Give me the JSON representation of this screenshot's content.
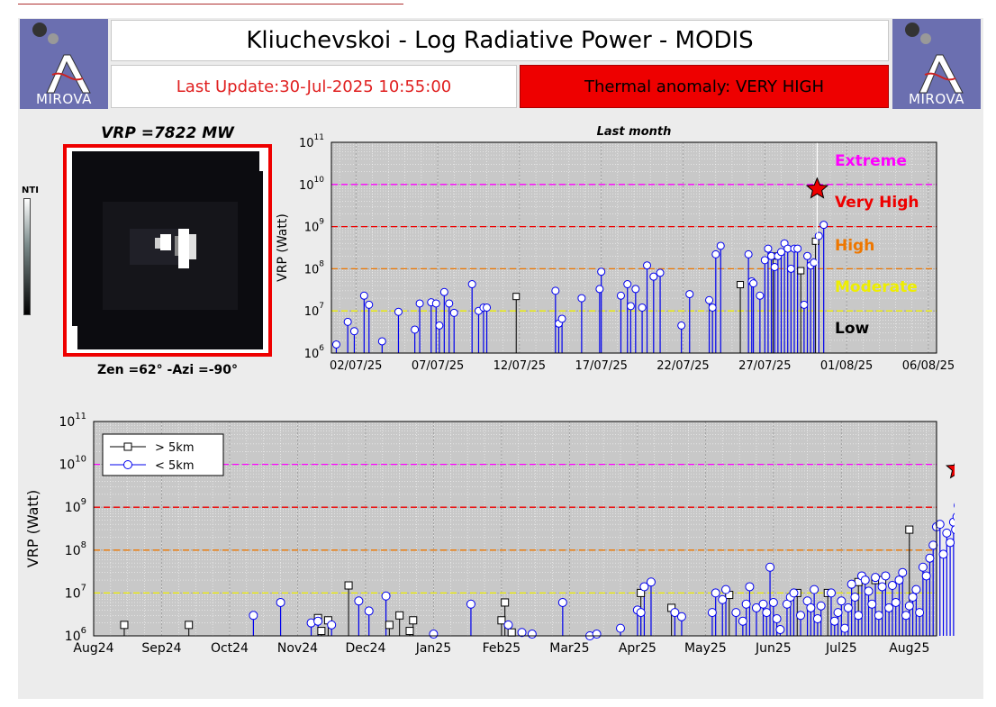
{
  "header": {
    "title": "Kliuchevskoi - Log Radiative Power - MODIS",
    "last_update": "Last Update:30-Jul-2025 10:55:00",
    "alert": "Thermal anomaly:  VERY HIGH",
    "logo_left": "MIROVA",
    "logo_right": "MIROVA"
  },
  "thumbnail": {
    "vrp_label": "VRP =7822 MW",
    "geometry_label": "Zen =62° -Azi =-90°",
    "colorbar_label": "NTI"
  },
  "colors": {
    "alert_bg": "#ee0000",
    "extreme": "#ff00ff",
    "very_high": "#ee0000",
    "high": "#ee7700",
    "moderate": "#eeee00",
    "low": "#000000",
    "series_near": "#0000ee",
    "series_far": "#000000",
    "latest_marker": "#ee0000"
  },
  "chart_data": [
    {
      "type": "scatter",
      "title": "Last month",
      "ylabel": "VRP (Watt)",
      "yscale": "log",
      "ylim": [
        1000000,
        100000000000
      ],
      "y_tick_labels": [
        {
          "base": "10",
          "exp": "6"
        },
        {
          "base": "10",
          "exp": "7"
        },
        {
          "base": "10",
          "exp": "8"
        },
        {
          "base": "10",
          "exp": "9"
        },
        {
          "base": "10",
          "exp": "10"
        },
        {
          "base": "10",
          "exp": "11"
        }
      ],
      "x_tick_labels": [
        "02/07/25",
        "07/07/25",
        "12/07/25",
        "17/07/25",
        "22/07/25",
        "27/07/25",
        "01/08/25",
        "06/08/25"
      ],
      "x_tick_days": [
        2,
        7,
        12,
        17,
        22,
        27,
        32,
        37
      ],
      "xlim": [
        0.5,
        37.5
      ],
      "grid": true,
      "thresholds": [
        {
          "label": "Extreme",
          "y": 10000000000,
          "color": "#ff00ff"
        },
        {
          "label": "Very High",
          "y": 1000000000,
          "color": "#ee0000"
        },
        {
          "label": "High",
          "y": 100000000,
          "color": "#ee7700"
        },
        {
          "label": "Moderate",
          "y": 10000000,
          "color": "#eeee00"
        },
        {
          "label": "Low",
          "y": null,
          "color": "#000000"
        }
      ],
      "series": [
        {
          "name": "< 5km",
          "points": [
            [
              0.8,
              1600000.0
            ],
            [
              1.5,
              5500000.0
            ],
            [
              1.9,
              3300000.0
            ],
            [
              2.5,
              23000000.0
            ],
            [
              2.8,
              14000000.0
            ],
            [
              3.6,
              1900000.0
            ],
            [
              4.6,
              9500000.0
            ],
            [
              5.6,
              3600000.0
            ],
            [
              5.9,
              15000000.0
            ],
            [
              6.6,
              16000000.0
            ],
            [
              6.9,
              15000000.0
            ],
            [
              7.1,
              4500000.0
            ],
            [
              7.4,
              28000000.0
            ],
            [
              7.7,
              15000000.0
            ],
            [
              8.0,
              9000000.0
            ],
            [
              9.1,
              43000000.0
            ],
            [
              9.5,
              10000000.0
            ],
            [
              9.8,
              12000000.0
            ],
            [
              10.0,
              12000000.0
            ],
            [
              14.2,
              30000000.0
            ],
            [
              14.4,
              5000000.0
            ],
            [
              14.6,
              6500000.0
            ],
            [
              15.8,
              20000000.0
            ],
            [
              16.9,
              33000000.0
            ],
            [
              17.0,
              85000000.0
            ],
            [
              18.2,
              23000000.0
            ],
            [
              18.6,
              43000000.0
            ],
            [
              18.8,
              13000000.0
            ],
            [
              19.1,
              33000000.0
            ],
            [
              19.5,
              12000000.0
            ],
            [
              19.8,
              120000000.0
            ],
            [
              20.2,
              65000000.0
            ],
            [
              20.6,
              80000000.0
            ],
            [
              21.9,
              4500000.0
            ],
            [
              22.4,
              25000000.0
            ],
            [
              23.6,
              18000000.0
            ],
            [
              23.8,
              12000000.0
            ],
            [
              24.0,
              220000000.0
            ],
            [
              24.3,
              350000000.0
            ],
            [
              26.0,
              220000000.0
            ],
            [
              26.2,
              50000000.0
            ],
            [
              26.3,
              45000000.0
            ],
            [
              26.7,
              23000000.0
            ],
            [
              27.0,
              160000000.0
            ],
            [
              27.2,
              300000000.0
            ],
            [
              27.4,
              200000000.0
            ],
            [
              27.6,
              110000000.0
            ],
            [
              27.8,
              200000000.0
            ],
            [
              28.0,
              250000000.0
            ],
            [
              28.2,
              400000000.0
            ],
            [
              28.4,
              300000000.0
            ],
            [
              28.6,
              100000000.0
            ],
            [
              28.8,
              300000000.0
            ],
            [
              29.0,
              300000000.0
            ],
            [
              29.4,
              14000000.0
            ],
            [
              29.6,
              200000000.0
            ],
            [
              29.8,
              120000000.0
            ],
            [
              30.0,
              140000000.0
            ],
            [
              30.3,
              600000000.0
            ],
            [
              30.6,
              1100000000.0
            ]
          ]
        },
        {
          "name": "> 5km",
          "points": [
            [
              11.8,
              22000000.0
            ],
            [
              25.5,
              42000000.0
            ],
            [
              27.5,
              200000000.0
            ],
            [
              29.2,
              90000000.0
            ],
            [
              30.1,
              450000000.0
            ]
          ]
        }
      ],
      "latest": [
        30.2,
        7800000000.0
      ]
    },
    {
      "type": "scatter",
      "ylabel": "VRP (Watt)",
      "yscale": "log",
      "ylim": [
        1000000,
        100000000000
      ],
      "y_tick_labels": [
        {
          "base": "10",
          "exp": "6"
        },
        {
          "base": "10",
          "exp": "7"
        },
        {
          "base": "10",
          "exp": "8"
        },
        {
          "base": "10",
          "exp": "9"
        },
        {
          "base": "10",
          "exp": "10"
        },
        {
          "base": "10",
          "exp": "11"
        }
      ],
      "x_tick_labels": [
        "Aug24",
        "Sep24",
        "Oct24",
        "Nov24",
        "Dec24",
        "Jan25",
        "Feb25",
        "Mar25",
        "Apr25",
        "May25",
        "Jun25",
        "Jul25",
        "Aug25"
      ],
      "x_tick_months": [
        0,
        1,
        2,
        3,
        4,
        5,
        6,
        7,
        8,
        9,
        10,
        11,
        12
      ],
      "xlim": [
        0,
        12.4
      ],
      "grid": true,
      "legend": {
        "position": "top-left",
        "entries": [
          "> 5km",
          "< 5km"
        ]
      },
      "thresholds": [
        {
          "y": 10000000000,
          "color": "#ff00ff"
        },
        {
          "y": 1000000000,
          "color": "#ee0000"
        },
        {
          "y": 100000000,
          "color": "#ee7700"
        },
        {
          "y": 10000000,
          "color": "#eeee00"
        }
      ],
      "series": [
        {
          "name": "> 5km",
          "points": [
            [
              0.45,
              1800000.0
            ],
            [
              1.4,
              1800000.0
            ],
            [
              3.3,
              2600000.0
            ],
            [
              3.35,
              1300000.0
            ],
            [
              3.45,
              2300000.0
            ],
            [
              3.75,
              15000000.0
            ],
            [
              4.35,
              1800000.0
            ],
            [
              4.5,
              3000000.0
            ],
            [
              4.65,
              1300000.0
            ],
            [
              4.7,
              2300000.0
            ],
            [
              6.05,
              6000000.0
            ],
            [
              6.0,
              2300000.0
            ],
            [
              6.15,
              1200000.0
            ],
            [
              8.05,
              10000000.0
            ],
            [
              8.5,
              4500000.0
            ],
            [
              9.35,
              9000000.0
            ],
            [
              10.35,
              10000000.0
            ],
            [
              10.8,
              10000000.0
            ],
            [
              11.25,
              18000000.0
            ],
            [
              11.5,
              20000000.0
            ],
            [
              11.6,
              20000000.0
            ],
            [
              12.0,
              300000000.0
            ]
          ]
        },
        {
          "name": "< 5km",
          "points": [
            [
              2.35,
              3000000.0
            ],
            [
              2.75,
              6000000.0
            ],
            [
              3.2,
              2000000.0
            ],
            [
              3.3,
              2200000.0
            ],
            [
              3.5,
              1800000.0
            ],
            [
              3.9,
              6500000.0
            ],
            [
              4.05,
              3800000.0
            ],
            [
              4.3,
              8500000.0
            ],
            [
              5.0,
              1100000.0
            ],
            [
              5.55,
              5500000.0
            ],
            [
              6.1,
              1800000.0
            ],
            [
              6.3,
              1200000.0
            ],
            [
              6.45,
              1100000.0
            ],
            [
              6.9,
              6000000.0
            ],
            [
              7.3,
              1000000.0
            ],
            [
              7.4,
              1100000.0
            ],
            [
              7.75,
              1500000.0
            ],
            [
              8.0,
              4000000.0
            ],
            [
              8.05,
              3500000.0
            ],
            [
              8.2,
              18000000.0
            ],
            [
              8.1,
              14000000.0
            ],
            [
              8.55,
              3500000.0
            ],
            [
              8.65,
              2800000.0
            ],
            [
              9.1,
              3500000.0
            ],
            [
              9.15,
              10000000.0
            ],
            [
              9.25,
              7000000.0
            ],
            [
              9.3,
              12000000.0
            ],
            [
              9.45,
              3500000.0
            ],
            [
              9.55,
              2200000.0
            ],
            [
              9.6,
              5500000.0
            ],
            [
              9.65,
              14000000.0
            ],
            [
              9.75,
              4500000.0
            ],
            [
              9.85,
              5500000.0
            ],
            [
              9.9,
              3500000.0
            ],
            [
              9.95,
              40000000.0
            ],
            [
              10.0,
              6000000.0
            ],
            [
              10.05,
              2500000.0
            ],
            [
              10.1,
              1400000.0
            ],
            [
              10.2,
              5500000.0
            ],
            [
              10.25,
              8000000.0
            ],
            [
              10.3,
              10000000.0
            ],
            [
              10.4,
              3000000.0
            ],
            [
              10.5,
              6500000.0
            ],
            [
              10.55,
              4500000.0
            ],
            [
              10.6,
              12000000.0
            ],
            [
              10.65,
              2500000.0
            ],
            [
              10.7,
              5000000.0
            ],
            [
              10.85,
              10000000.0
            ],
            [
              10.9,
              2200000.0
            ],
            [
              10.95,
              3500000.0
            ],
            [
              11.0,
              6500000.0
            ],
            [
              11.05,
              1500000.0
            ],
            [
              11.1,
              4500000.0
            ],
            [
              11.15,
              16000000.0
            ],
            [
              11.2,
              8000000.0
            ],
            [
              11.25,
              3000000.0
            ],
            [
              11.3,
              25000000.0
            ],
            [
              11.35,
              20000000.0
            ],
            [
              11.4,
              11000000.0
            ],
            [
              11.45,
              5500000.0
            ],
            [
              11.5,
              23000000.0
            ],
            [
              11.55,
              3000000.0
            ],
            [
              11.6,
              14000000.0
            ],
            [
              11.65,
              25000000.0
            ],
            [
              11.7,
              4500000.0
            ],
            [
              11.75,
              15000000.0
            ],
            [
              11.8,
              6000000.0
            ],
            [
              11.85,
              20000000.0
            ],
            [
              11.9,
              30000000.0
            ],
            [
              11.95,
              3000000.0
            ],
            [
              12.0,
              5000000.0
            ],
            [
              12.05,
              8000000.0
            ],
            [
              12.1,
              12000000.0
            ],
            [
              12.15,
              3500000.0
            ],
            [
              12.2,
              40000000.0
            ],
            [
              12.25,
              25000000.0
            ],
            [
              12.3,
              65000000.0
            ],
            [
              12.35,
              130000000.0
            ],
            [
              12.4,
              350000000.0
            ],
            [
              12.45,
              400000000.0
            ],
            [
              12.5,
              80000000.0
            ],
            [
              12.55,
              250000000.0
            ],
            [
              12.6,
              150000000.0
            ],
            [
              12.65,
              450000000.0
            ],
            [
              12.7,
              600000000.0
            ],
            [
              12.72,
              1100000000.0
            ],
            [
              12.68,
              300000000.0
            ]
          ]
        }
      ],
      "latest": [
        12.7,
        7800000000.0
      ]
    }
  ]
}
